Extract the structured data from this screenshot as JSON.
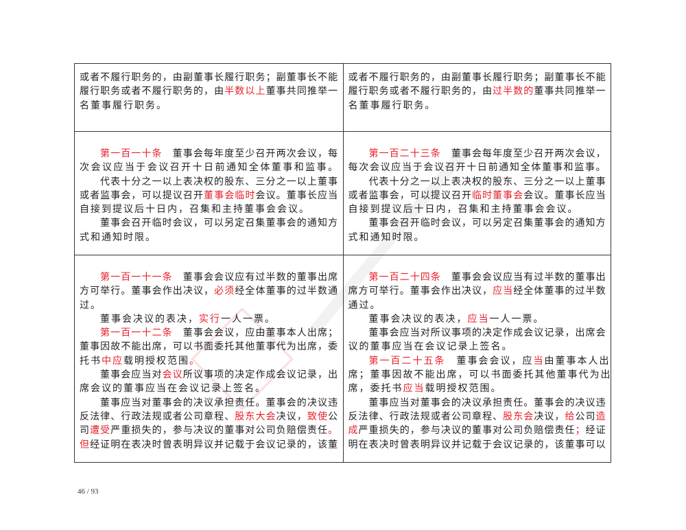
{
  "colors": {
    "highlight": "#e8202a",
    "border": "#333333"
  },
  "page_number": "46 / 93",
  "rows": [
    {
      "left": [
        {
          "s": 0,
          "seg": [
            [
              "或者不履行职务的，由副董事长履行职务；副董事长不能",
              0
            ]
          ]
        },
        {
          "s": 0,
          "seg": [
            [
              "履行职务或者不履行职务的，由",
              0
            ],
            [
              "半数以上",
              1
            ],
            [
              "董事共同推举一",
              0
            ]
          ]
        },
        {
          "s": 1,
          "seg": [
            [
              "名董事履行职务。",
              0
            ]
          ]
        }
      ],
      "right": [
        {
          "s": 0,
          "seg": [
            [
              "或者不履行职务的，由副董事长履行职务；副董事长不能",
              0
            ]
          ]
        },
        {
          "s": 0,
          "seg": [
            [
              "履行职务或者不履行职务的，由",
              0
            ],
            [
              "过半数的",
              1
            ],
            [
              "董事共同推举一",
              0
            ]
          ]
        },
        {
          "s": 1,
          "seg": [
            [
              "名董事履行职务。",
              0
            ]
          ]
        }
      ]
    },
    {
      "left": [
        {
          "i": 1,
          "s": 0,
          "seg": [
            [
              "第一百一十条",
              1
            ],
            [
              "　董事会每年度至少召开两次会议，每",
              0
            ]
          ]
        },
        {
          "s": 0,
          "seg": [
            [
              "次会议应当于会议召开十日前通知全体董事和监事。",
              0
            ]
          ]
        },
        {
          "i": 1,
          "s": 0,
          "seg": [
            [
              "代表十分之一以上表决权的股东、三分之一以上董事",
              0
            ]
          ]
        },
        {
          "s": 0,
          "seg": [
            [
              "或者监事会，可以提议召开",
              0
            ],
            [
              "董事会临时",
              1
            ],
            [
              "会议。董事长应当",
              0
            ]
          ]
        },
        {
          "s": 1,
          "seg": [
            [
              "自接到提议后十日内，召集和主持董事会会议。",
              0
            ]
          ]
        },
        {
          "i": 1,
          "s": 0,
          "seg": [
            [
              "董事会召开临时会议，可以另定召集董事会的通知方",
              0
            ]
          ]
        },
        {
          "s": 1,
          "seg": [
            [
              "式和通知时限。",
              0
            ]
          ]
        }
      ],
      "right": [
        {
          "i": 1,
          "s": 0,
          "seg": [
            [
              "第一百二十三条",
              1
            ],
            [
              "　董事会每年度至少召开两次会议，",
              0
            ]
          ]
        },
        {
          "s": 0,
          "seg": [
            [
              "每次会议应当于会议召开十日前通知全体董事和监事。",
              0
            ]
          ]
        },
        {
          "i": 1,
          "s": 0,
          "seg": [
            [
              "代表十分之一以上表决权的股东、三分之一以上董事",
              0
            ]
          ]
        },
        {
          "s": 0,
          "seg": [
            [
              "或者监事会，可以提议召开",
              0
            ],
            [
              "临时董事会",
              1
            ],
            [
              "会议。董事长应当",
              0
            ]
          ]
        },
        {
          "s": 1,
          "seg": [
            [
              "自接到提议后十日内，召集和主持董事会会议。",
              0
            ]
          ]
        },
        {
          "i": 1,
          "s": 0,
          "seg": [
            [
              "董事会召开临时会议，可以另定召集董事会的通知方",
              0
            ]
          ]
        },
        {
          "s": 1,
          "seg": [
            [
              "式和通知时限。",
              0
            ]
          ]
        }
      ]
    },
    {
      "left": [
        {
          "i": 1,
          "s": 0,
          "seg": [
            [
              "第一百一十一条",
              1
            ],
            [
              "　董事会会议应有过半数的董事出席",
              0
            ]
          ]
        },
        {
          "s": 0,
          "seg": [
            [
              "方可举行。董事会作出决议，",
              0
            ],
            [
              "必须",
              1
            ],
            [
              "经全体董事的过半数通",
              0
            ]
          ]
        },
        {
          "s": 1,
          "seg": [
            [
              "过。",
              0
            ]
          ]
        },
        {
          "i": 1,
          "s": 1,
          "seg": [
            [
              "董事会决议的表决，",
              0
            ],
            [
              "实行",
              1
            ],
            [
              "一人一票。",
              0
            ]
          ]
        },
        {
          "i": 1,
          "s": 0,
          "seg": [
            [
              "第一百一十二条",
              1
            ],
            [
              "　董事会会议，应由董事本人出席；",
              0
            ]
          ]
        },
        {
          "s": 0,
          "seg": [
            [
              "董事因故不能出席，可以书面委托其他董事代为出席，委",
              0
            ]
          ]
        },
        {
          "s": 1,
          "seg": [
            [
              "托书",
              0
            ],
            [
              "中应",
              1
            ],
            [
              "载明授权范围",
              0
            ],
            [
              "。",
              1
            ]
          ]
        },
        {
          "i": 1,
          "s": 0,
          "seg": [
            [
              "董事会应当对",
              0
            ],
            [
              "会议",
              1
            ],
            [
              "所议事项的决定作成会议记录，出",
              0
            ]
          ]
        },
        {
          "s": 1,
          "seg": [
            [
              "席会议的董事应当在会议记录上签名。",
              0
            ]
          ]
        },
        {
          "i": 1,
          "s": 0,
          "seg": [
            [
              "董事应当对董事会的决议承担责任。董事会的决议违",
              0
            ]
          ]
        },
        {
          "s": 0,
          "seg": [
            [
              "反法律、行政法规或者公司章程、",
              0
            ],
            [
              "股东大会",
              1
            ],
            [
              "决议，",
              0
            ],
            [
              "致使",
              1
            ],
            [
              "公",
              0
            ]
          ]
        },
        {
          "s": 0,
          "seg": [
            [
              "司",
              0
            ],
            [
              "遭受",
              1
            ],
            [
              "严重损失的，参与决议的董事对公司负赔偿责任",
              0
            ],
            [
              "。",
              1
            ]
          ]
        },
        {
          "s": 0,
          "seg": [
            [
              "但",
              1
            ],
            [
              "经证明在表决时曾表明异议并记载于会议记录的，该董",
              0
            ]
          ]
        }
      ],
      "right": [
        {
          "i": 1,
          "s": 0,
          "seg": [
            [
              "第一百二十四条",
              1
            ],
            [
              "　董事会会议应当有过半数的董事出",
              0
            ]
          ]
        },
        {
          "s": 0,
          "seg": [
            [
              "席方可举行。董事会作出决议，",
              0
            ],
            [
              "应当",
              1
            ],
            [
              "经全体董事的过半数",
              0
            ]
          ]
        },
        {
          "s": 1,
          "seg": [
            [
              "通过。",
              0
            ]
          ]
        },
        {
          "i": 1,
          "s": 1,
          "seg": [
            [
              "董事会决议的表决，",
              0
            ],
            [
              "应当",
              1
            ],
            [
              "一人一票。",
              0
            ]
          ]
        },
        {
          "i": 1,
          "s": 0,
          "seg": [
            [
              "董事会应当对所议事项的决定作成会议记录，出席会",
              0
            ]
          ]
        },
        {
          "s": 1,
          "seg": [
            [
              "议的董事应当在会议记录上签名。",
              0
            ]
          ]
        },
        {
          "i": 1,
          "s": 1,
          "seg": [
            [
              "第一百二十五条",
              1
            ],
            [
              "　董事会会议，应",
              0
            ],
            [
              "当",
              1
            ],
            [
              "由董事本人出",
              0
            ]
          ]
        },
        {
          "s": 1,
          "seg": [
            [
              "席；董事因故不能出席，可以书面委托其他董事代为出",
              0
            ]
          ]
        },
        {
          "s": 1,
          "seg": [
            [
              "席，委托书",
              0
            ],
            [
              "应当",
              1
            ],
            [
              "载明授权范围。",
              0
            ]
          ]
        },
        {
          "i": 1,
          "s": 0,
          "seg": [
            [
              "董事应当对董事会的决议承担责任。董事会的决议违",
              0
            ]
          ]
        },
        {
          "s": 0,
          "seg": [
            [
              "反法律、行政法规或者公司章程、",
              0
            ],
            [
              "股东会",
              1
            ],
            [
              "决议，",
              0
            ],
            [
              "给",
              1
            ],
            [
              "公司",
              0
            ],
            [
              "造",
              1
            ]
          ]
        },
        {
          "s": 0,
          "seg": [
            [
              "成",
              1
            ],
            [
              "严重损失的，参与决议的董事对公司负赔偿责任",
              0
            ],
            [
              "；",
              1
            ],
            [
              "经证",
              0
            ]
          ]
        },
        {
          "s": 0,
          "seg": [
            [
              "明在表决时曾表明异议并记载于会议记录的，该董事可以",
              0
            ]
          ]
        }
      ]
    }
  ]
}
